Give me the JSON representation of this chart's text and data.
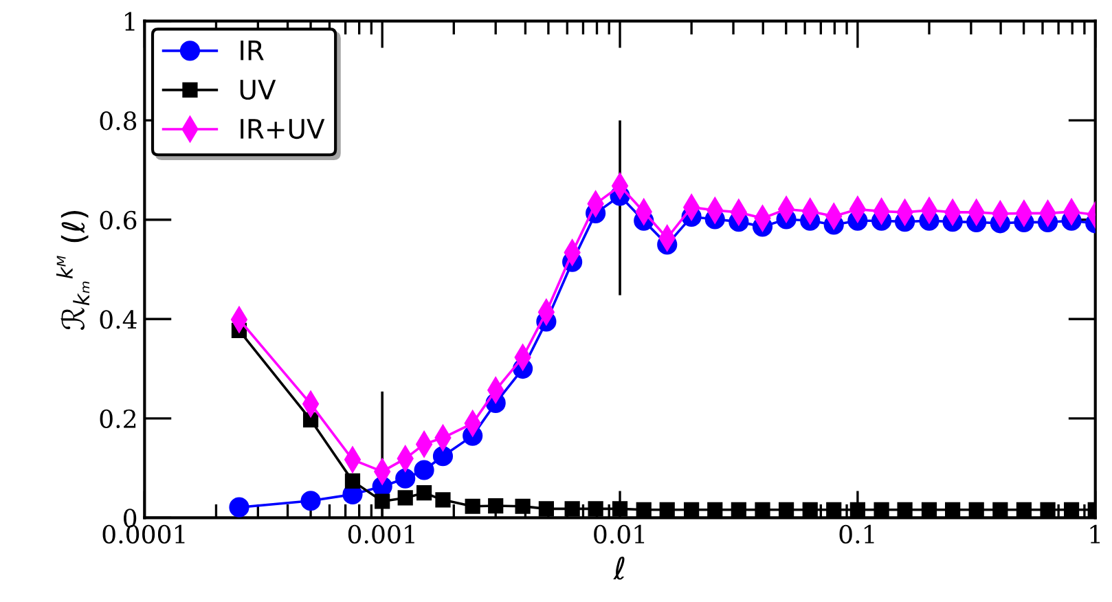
{
  "chart_data": {
    "type": "line",
    "xlabel": "ℓ",
    "ylabel": "ℛ$_{kₘ}$$^{kᴹ}$ (ℓ)",
    "x": [
      0.00025,
      0.0005,
      0.00075,
      0.001,
      0.00125,
      0.0015,
      0.0018,
      0.0024,
      0.003,
      0.0039,
      0.0049,
      0.0063,
      0.0079,
      0.01,
      0.0126,
      0.0158,
      0.02,
      0.0251,
      0.0316,
      0.0398,
      0.0501,
      0.0631,
      0.0794,
      0.1,
      0.126,
      0.158,
      0.2,
      0.251,
      0.316,
      0.398,
      0.501,
      0.631,
      0.794,
      1.0
    ],
    "series": [
      {
        "name": "IR",
        "color": "#0000ff",
        "marker": "circle",
        "values": [
          0.021,
          0.034,
          0.047,
          0.063,
          0.079,
          0.096,
          0.124,
          0.165,
          0.231,
          0.3,
          0.395,
          0.515,
          0.613,
          0.648,
          0.598,
          0.55,
          0.606,
          0.601,
          0.596,
          0.586,
          0.601,
          0.598,
          0.59,
          0.598,
          0.598,
          0.596,
          0.598,
          0.596,
          0.595,
          0.593,
          0.595,
          0.595,
          0.598,
          0.593
        ]
      },
      {
        "name": "UV",
        "color": "#000000",
        "marker": "square",
        "values": [
          0.377,
          0.197,
          0.074,
          0.033,
          0.04,
          0.05,
          0.036,
          0.023,
          0.024,
          0.023,
          0.018,
          0.018,
          0.018,
          0.018,
          0.016,
          0.016,
          0.016,
          0.016,
          0.016,
          0.016,
          0.016,
          0.016,
          0.016,
          0.016,
          0.016,
          0.016,
          0.016,
          0.016,
          0.016,
          0.016,
          0.016,
          0.016,
          0.016,
          0.016
        ]
      },
      {
        "name": "IR+UV",
        "color": "#ff00ff",
        "marker": "diamond",
        "values": [
          0.399,
          0.229,
          0.117,
          0.093,
          0.119,
          0.148,
          0.161,
          0.19,
          0.257,
          0.323,
          0.414,
          0.534,
          0.632,
          0.668,
          0.616,
          0.563,
          0.625,
          0.619,
          0.615,
          0.603,
          0.621,
          0.617,
          0.607,
          0.621,
          0.617,
          0.615,
          0.619,
          0.615,
          0.615,
          0.612,
          0.613,
          0.613,
          0.616,
          0.61
        ],
        "errors": [
          null,
          null,
          null,
          [
            0,
            0.254
          ],
          null,
          null,
          null,
          null,
          null,
          null,
          null,
          null,
          null,
          [
            0.448,
            0.8
          ],
          null,
          null,
          null,
          null,
          null,
          null,
          null,
          null,
          null,
          null,
          null,
          null,
          null,
          null,
          null,
          null,
          null,
          null,
          null,
          null
        ]
      }
    ],
    "log": "x",
    "xlim": [
      0.0001,
      1
    ],
    "xticks": [
      0.0001,
      0.001,
      0.01,
      0.1,
      1
    ],
    "ylim": [
      0,
      1
    ],
    "yticks": [
      0,
      0.2,
      0.4,
      0.6,
      0.8,
      1
    ],
    "grid": false,
    "legend": "top left",
    "line_style": "solid"
  }
}
